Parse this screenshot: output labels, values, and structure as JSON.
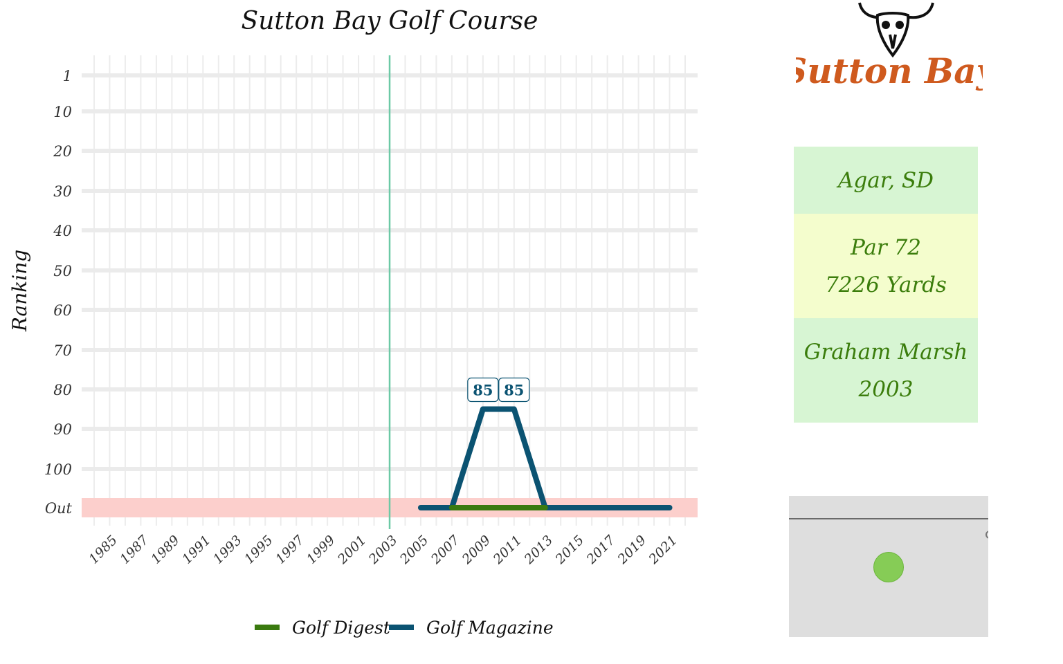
{
  "chart_data": {
    "type": "line",
    "title": "Sutton Bay Golf Course",
    "xlabel": "",
    "ylabel": "Ranking",
    "x_ticks": [
      "1985",
      "1987",
      "1989",
      "1991",
      "1993",
      "1995",
      "1997",
      "1999",
      "2001",
      "2003",
      "2005",
      "2007",
      "2009",
      "2011",
      "2013",
      "2015",
      "2017",
      "2019",
      "2021"
    ],
    "y_ticks": [
      "1",
      "10",
      "20",
      "30",
      "40",
      "50",
      "60",
      "70",
      "80",
      "90",
      "100",
      "Out"
    ],
    "xlim": [
      1983.2,
      2022.8
    ],
    "y_reversed": true,
    "out_band_label": "Out",
    "out_band_color": "#fccfcc",
    "built_year_line": 2003,
    "built_line_color": "#6cc9a6",
    "grid": true,
    "legend_position": "bottom",
    "series": [
      {
        "name": "Golf Digest",
        "color": "#3a7a0f",
        "points": [
          [
            2007,
            "Out"
          ],
          [
            2013,
            "Out"
          ]
        ]
      },
      {
        "name": "Golf Magazine",
        "color": "#0b5372",
        "points": [
          [
            2005,
            "Out"
          ],
          [
            2007,
            "Out"
          ],
          [
            2009,
            85
          ],
          [
            2011,
            85
          ],
          [
            2013,
            "Out"
          ],
          [
            2015,
            "Out"
          ],
          [
            2017,
            "Out"
          ],
          [
            2019,
            "Out"
          ],
          [
            2021,
            "Out"
          ]
        ]
      }
    ],
    "data_labels": [
      {
        "x": 2009,
        "y": 85,
        "text": "85"
      },
      {
        "x": 2011,
        "y": 85,
        "text": "85"
      }
    ]
  },
  "logo": {
    "text": "Sutton Bay"
  },
  "info": {
    "location": "Agar, SD",
    "par": "Par 72",
    "yards": "7226 Yards",
    "architect": "Graham Marsh",
    "year": "2003"
  },
  "map": {
    "marker_color": "#86cc56"
  }
}
